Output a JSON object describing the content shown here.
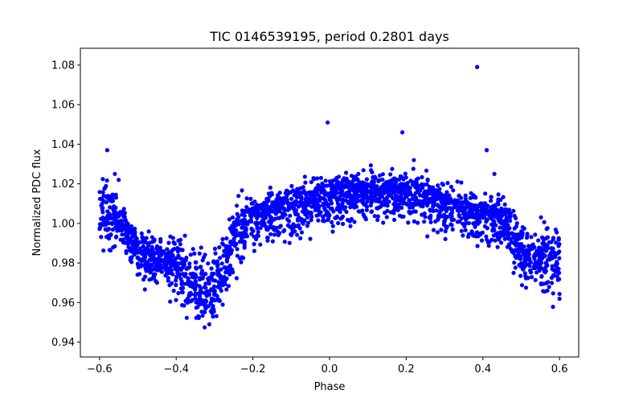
{
  "chart_data": {
    "type": "scatter",
    "title": "TIC 0146539195, period 0.2801 days",
    "xlabel": "Phase",
    "ylabel": "Normalized PDC flux",
    "xlim": [
      -0.65,
      0.65
    ],
    "ylim": [
      0.9325,
      1.0885
    ],
    "xticks": [
      -0.6,
      -0.4,
      -0.2,
      0.0,
      0.2,
      0.4,
      0.6
    ],
    "xtick_labels": [
      "−0.6",
      "−0.4",
      "−0.2",
      "0.0",
      "0.2",
      "0.4",
      "0.6"
    ],
    "yticks": [
      0.94,
      0.96,
      0.98,
      1.0,
      1.02,
      1.04,
      1.06,
      1.08
    ],
    "ytick_labels": [
      "0.94",
      "0.96",
      "0.98",
      "1.00",
      "1.02",
      "1.04",
      "1.06",
      "1.08"
    ],
    "grid": false,
    "marker_color": "#0000ff",
    "profile": {
      "x": [
        -0.6,
        -0.58,
        -0.56,
        -0.54,
        -0.52,
        -0.5,
        -0.48,
        -0.46,
        -0.44,
        -0.42,
        -0.4,
        -0.38,
        -0.36,
        -0.34,
        -0.32,
        -0.3,
        -0.28,
        -0.26,
        -0.24,
        -0.22,
        -0.2,
        -0.15,
        -0.1,
        -0.05,
        0.0,
        0.05,
        0.1,
        0.15,
        0.2,
        0.25,
        0.3,
        0.35,
        0.4,
        0.44,
        0.46,
        0.48,
        0.5,
        0.52,
        0.54,
        0.56,
        0.58,
        0.6
      ],
      "y": [
        1.005,
        1.004,
        1.003,
        1.0,
        0.99,
        0.985,
        0.983,
        0.982,
        0.981,
        0.98,
        0.978,
        0.976,
        0.972,
        0.968,
        0.965,
        0.968,
        0.975,
        0.985,
        0.995,
        1.0,
        1.004,
        1.008,
        1.011,
        1.013,
        1.015,
        1.017,
        1.018,
        1.018,
        1.017,
        1.015,
        1.012,
        1.009,
        1.007,
        1.005,
        1.002,
        0.992,
        0.985,
        0.983,
        0.982,
        0.981,
        0.98,
        0.979
      ]
    },
    "outliers": {
      "x": [
        -0.58,
        -0.56,
        -0.55,
        -0.005,
        0.19,
        0.22,
        0.385,
        0.41,
        0.43
      ],
      "y": [
        1.037,
        1.025,
        1.022,
        1.051,
        1.046,
        1.032,
        1.079,
        1.037,
        1.025
      ]
    }
  }
}
